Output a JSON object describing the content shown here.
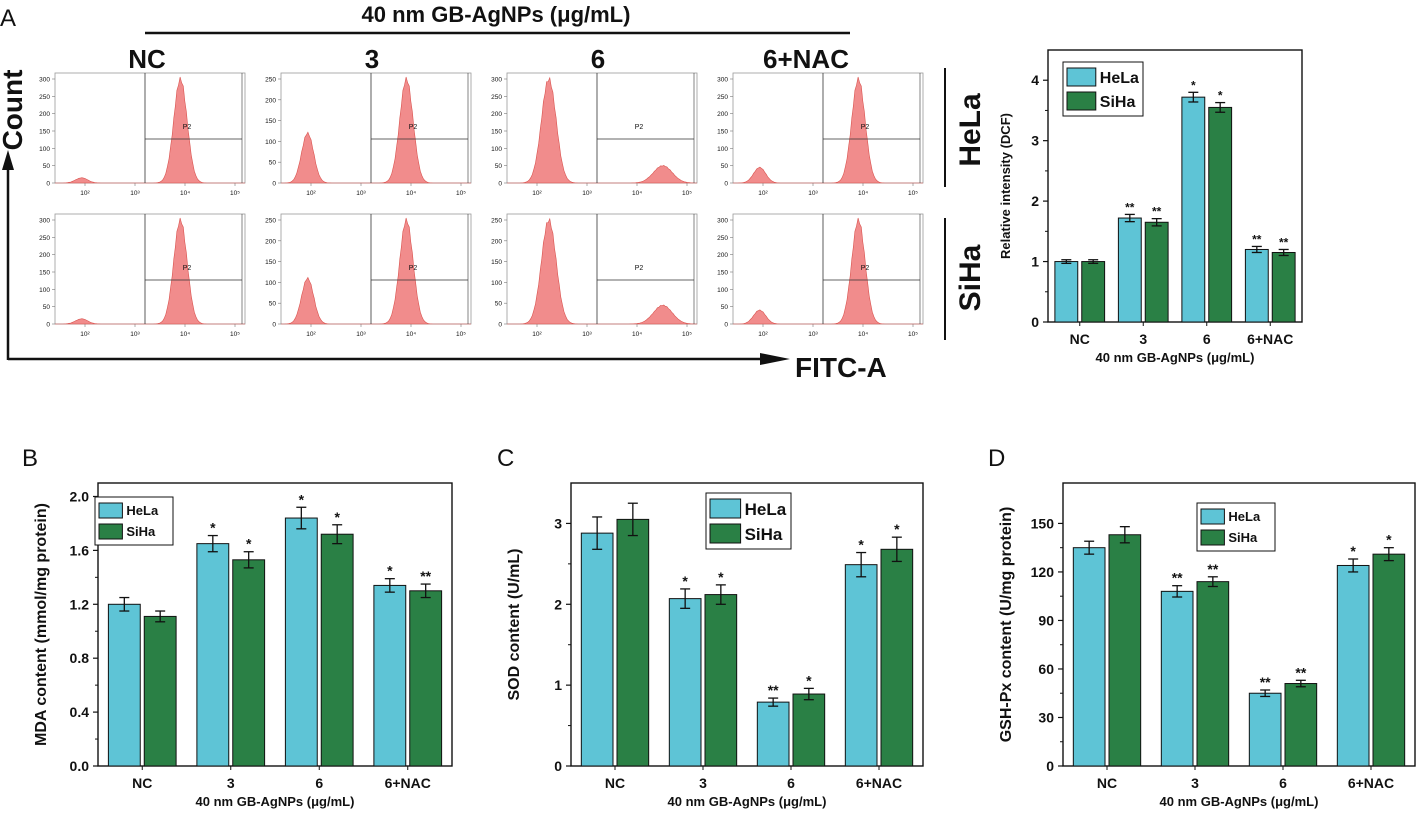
{
  "panel_labels": {
    "a": "A",
    "b": "B",
    "c": "C",
    "d": "D"
  },
  "flow": {
    "header": "40  nm  GB-AgNPs  (μg/mL)",
    "columns": [
      "NC",
      "3",
      "6",
      "6+NAC"
    ],
    "rows": [
      "HeLa",
      "SiHa"
    ],
    "ylabel": "Count",
    "xlabel": "FITC-A",
    "gate_label": "P2",
    "x_ticks": [
      "10²",
      "10³",
      "10⁴",
      "10⁵"
    ],
    "y_ticks_300": [
      "0",
      "50",
      "100",
      "150",
      "200",
      "250",
      "300"
    ],
    "y_ticks_250": [
      "0",
      "50",
      "100",
      "150",
      "200",
      "250"
    ],
    "hist_color": "#f08080",
    "panels": [
      {
        "row": "HeLa",
        "col": "NC",
        "ymax": 300,
        "neg_peak": 15,
        "pos_peak": 300
      },
      {
        "row": "HeLa",
        "col": "3",
        "ymax": 250,
        "neg_peak": 120,
        "pos_peak": 250
      },
      {
        "row": "HeLa",
        "col": "6",
        "ymax": 300,
        "neg_peak": 300,
        "pos_peak": 50
      },
      {
        "row": "HeLa",
        "col": "6+NAC",
        "ymax": 300,
        "neg_peak": 45,
        "pos_peak": 300
      },
      {
        "row": "SiHa",
        "col": "NC",
        "ymax": 300,
        "neg_peak": 15,
        "pos_peak": 300
      },
      {
        "row": "SiHa",
        "col": "3",
        "ymax": 250,
        "neg_peak": 110,
        "pos_peak": 250
      },
      {
        "row": "SiHa",
        "col": "6",
        "ymax": 250,
        "neg_peak": 250,
        "pos_peak": 45
      },
      {
        "row": "SiHa",
        "col": "6+NAC",
        "ymax": 300,
        "neg_peak": 40,
        "pos_peak": 300
      }
    ]
  },
  "colors": {
    "hela": "#5ec4d6",
    "siha": "#2a8045",
    "hist": "#f08080"
  },
  "chart_data": [
    {
      "id": "A-right",
      "type": "bar",
      "categories": [
        "NC",
        "3",
        "6",
        "6+NAC"
      ],
      "series": [
        {
          "name": "HeLa",
          "values": [
            1.0,
            1.72,
            3.72,
            1.2
          ],
          "errors": [
            0.03,
            0.06,
            0.08,
            0.05
          ],
          "sig": [
            "",
            "**",
            "*",
            "**"
          ]
        },
        {
          "name": "SiHa",
          "values": [
            1.0,
            1.65,
            3.55,
            1.15
          ],
          "errors": [
            0.03,
            0.06,
            0.08,
            0.05
          ],
          "sig": [
            "",
            "**",
            "*",
            "**"
          ]
        }
      ],
      "ylabel": "Relative intensity (DCF)",
      "xlabel": "40 nm GB-AgNPs (μg/mL)",
      "ylim": [
        0,
        4.5
      ],
      "yticks": [
        0,
        1,
        2,
        3,
        4
      ],
      "ytick_labels": [
        "0",
        "1",
        "2",
        "3",
        "4"
      ],
      "legend": "top-left"
    },
    {
      "id": "B",
      "type": "bar",
      "categories": [
        "NC",
        "3",
        "6",
        "6+NAC"
      ],
      "series": [
        {
          "name": "HeLa",
          "values": [
            1.2,
            1.65,
            1.84,
            1.34
          ],
          "errors": [
            0.05,
            0.06,
            0.08,
            0.05
          ],
          "sig": [
            "",
            "*",
            "*",
            "*"
          ]
        },
        {
          "name": "SiHa",
          "values": [
            1.11,
            1.53,
            1.72,
            1.3
          ],
          "errors": [
            0.04,
            0.06,
            0.07,
            0.05
          ],
          "sig": [
            "",
            "*",
            "*",
            "**"
          ]
        }
      ],
      "ylabel": "MDA content (mmol/mg protein)",
      "xlabel": "40 nm GB-AgNPs (μg/mL)",
      "ylim": [
        0,
        2.1
      ],
      "yticks": [
        0,
        0.4,
        0.8,
        1.2,
        1.6,
        2.0
      ],
      "ytick_labels": [
        "0.0",
        "0.4",
        "0.8",
        "1.2",
        "1.6",
        "2.0"
      ],
      "legend": "top-left"
    },
    {
      "id": "C",
      "type": "bar",
      "categories": [
        "NC",
        "3",
        "6",
        "6+NAC"
      ],
      "series": [
        {
          "name": "HeLa",
          "values": [
            2.88,
            2.07,
            0.79,
            2.49
          ],
          "errors": [
            0.2,
            0.12,
            0.05,
            0.15
          ],
          "sig": [
            "",
            "*",
            "**",
            "*"
          ]
        },
        {
          "name": "SiHa",
          "values": [
            3.05,
            2.12,
            0.89,
            2.68
          ],
          "errors": [
            0.2,
            0.12,
            0.07,
            0.15
          ],
          "sig": [
            "",
            "*",
            "*",
            "*"
          ]
        }
      ],
      "ylabel": "SOD content (U/mL)",
      "xlabel": "40 nm GB-AgNPs (μg/mL)",
      "ylim": [
        0,
        3.5
      ],
      "yticks": [
        0,
        1,
        2,
        3
      ],
      "ytick_labels": [
        "0",
        "1",
        "2",
        "3"
      ],
      "legend": "top-center"
    },
    {
      "id": "D",
      "type": "bar",
      "categories": [
        "NC",
        "3",
        "6",
        "6+NAC"
      ],
      "series": [
        {
          "name": "HeLa",
          "values": [
            135,
            108,
            45,
            124
          ],
          "errors": [
            4,
            3.5,
            2,
            4
          ],
          "sig": [
            "",
            "**",
            "**",
            "*"
          ]
        },
        {
          "name": "SiHa",
          "values": [
            143,
            114,
            51,
            131
          ],
          "errors": [
            5,
            3,
            2,
            4
          ],
          "sig": [
            "",
            "**",
            "**",
            "*"
          ]
        }
      ],
      "ylabel": "GSH-Px content (U/mg protein)",
      "xlabel": "40 nm GB-AgNPs (μg/mL)",
      "ylim": [
        0,
        175
      ],
      "yticks": [
        0,
        30,
        60,
        90,
        120,
        150
      ],
      "ytick_labels": [
        "0",
        "30",
        "60",
        "90",
        "120",
        "150"
      ],
      "legend": "top-center"
    }
  ]
}
